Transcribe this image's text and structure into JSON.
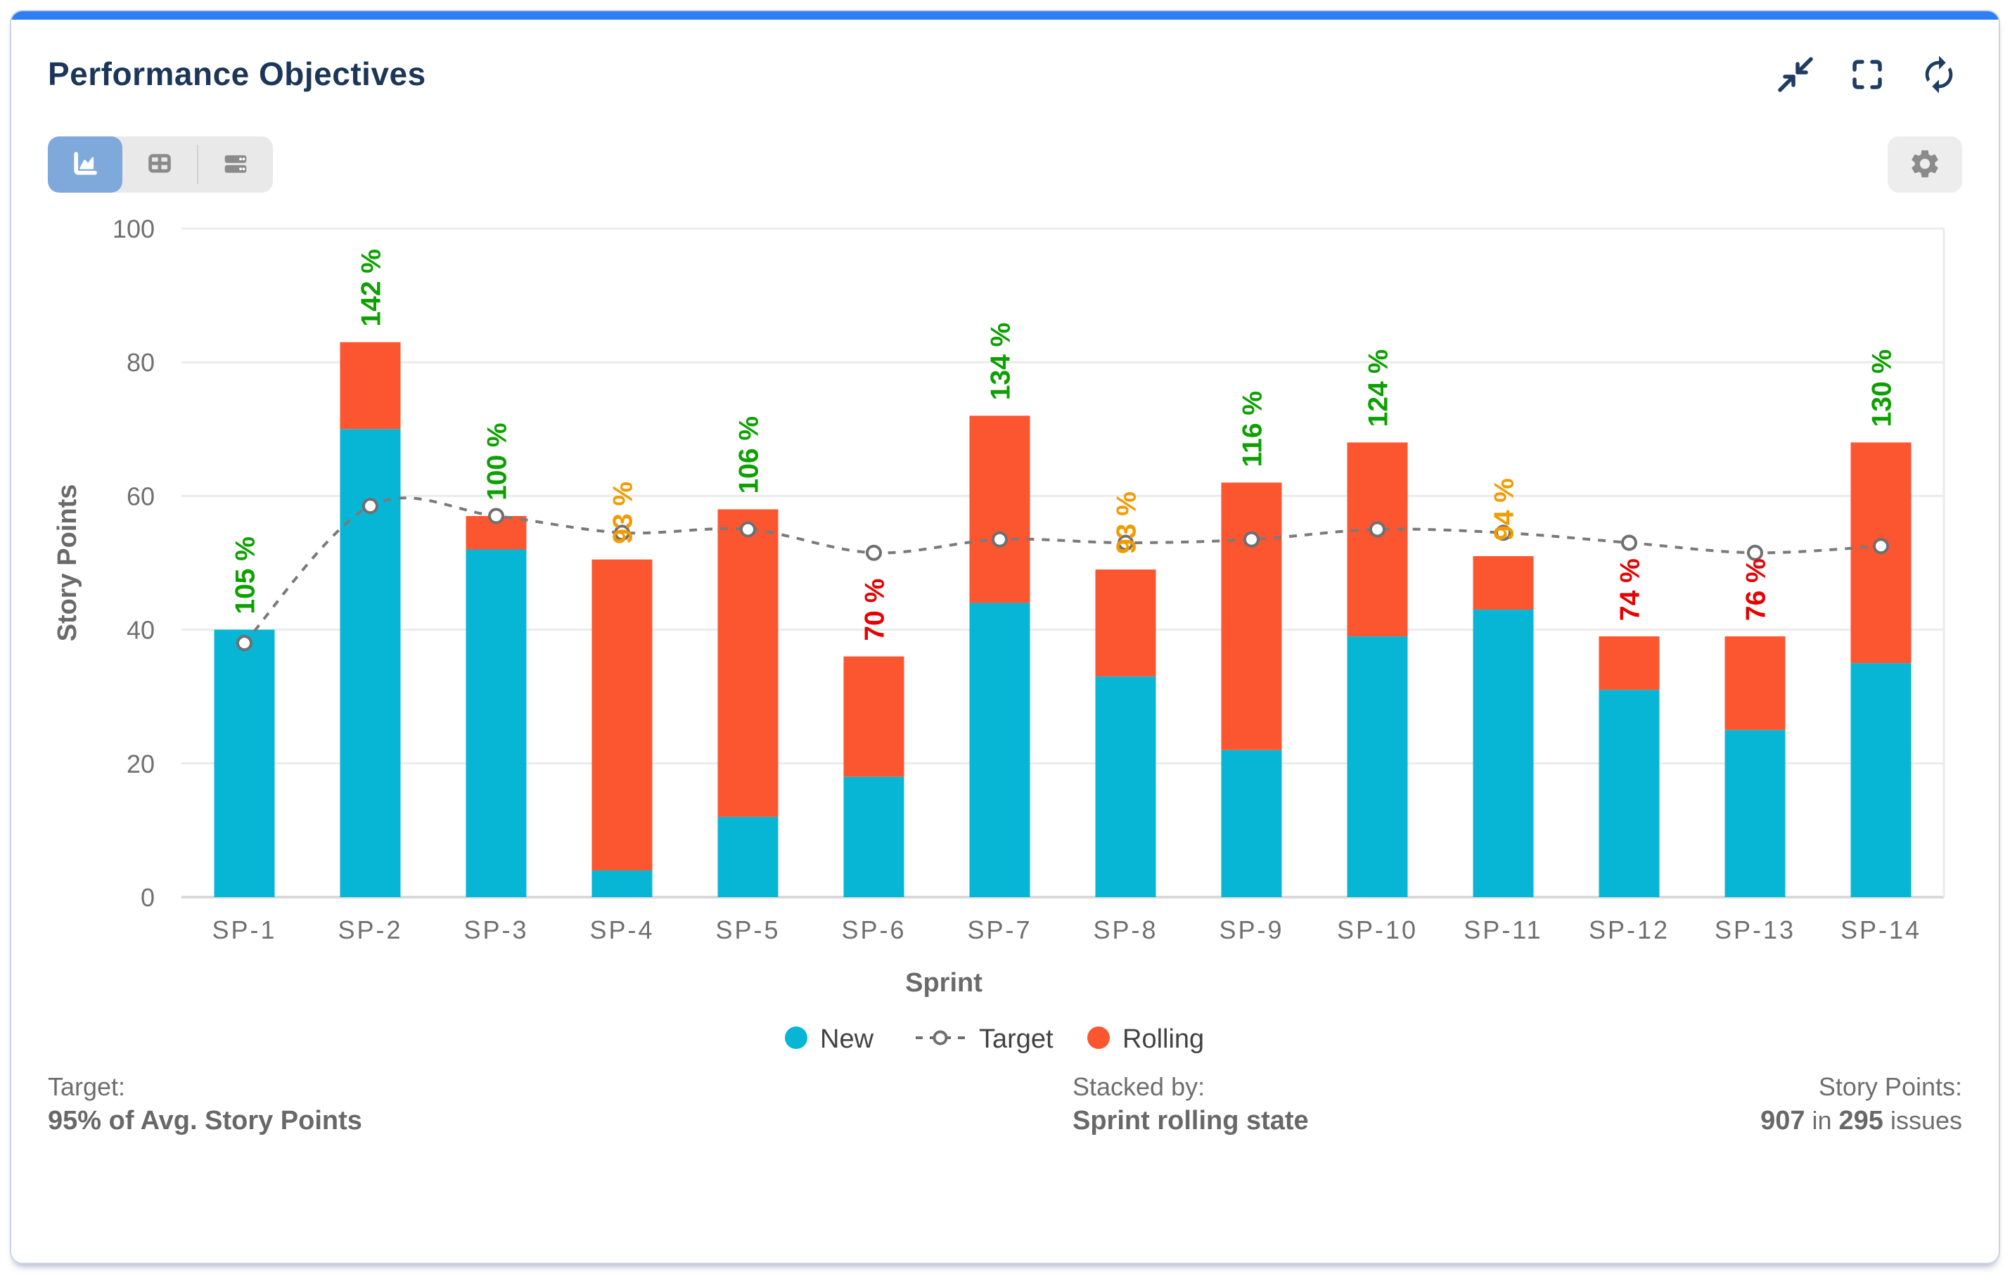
{
  "panel": {
    "title": "Performance Objectives"
  },
  "header": {
    "icons": [
      {
        "name": "collapse"
      },
      {
        "name": "fullscreen"
      },
      {
        "name": "refresh"
      }
    ]
  },
  "toolbar": {
    "views": [
      "chart",
      "table",
      "rows"
    ],
    "active_view": "chart"
  },
  "chart_data": {
    "type": "bar",
    "stacked": true,
    "title": "Performance Objectives",
    "categories": [
      "SP-1",
      "SP-2",
      "SP-3",
      "SP-4",
      "SP-5",
      "SP-6",
      "SP-7",
      "SP-8",
      "SP-9",
      "SP-10",
      "SP-11",
      "SP-12",
      "SP-13",
      "SP-14"
    ],
    "series": [
      {
        "name": "New",
        "color": "#07b6d5",
        "values": [
          40,
          70,
          52,
          4,
          12,
          18,
          44,
          33,
          22,
          39,
          43,
          31,
          25,
          35
        ]
      },
      {
        "name": "Rolling",
        "color": "#fb5630",
        "values": [
          0,
          13,
          5,
          46.5,
          46,
          18,
          28,
          16,
          40,
          29,
          8,
          8,
          14,
          33
        ]
      }
    ],
    "target": {
      "name": "Target",
      "color": "#7a7a7a",
      "values": [
        38,
        58.5,
        57,
        54.5,
        55,
        51.5,
        53.5,
        53,
        53.5,
        55,
        54.5,
        53,
        51.5,
        52.5
      ]
    },
    "percent_labels": [
      {
        "text": "105 %",
        "status": "good"
      },
      {
        "text": "142 %",
        "status": "good"
      },
      {
        "text": "100 %",
        "status": "good"
      },
      {
        "text": "93 %",
        "status": "warn"
      },
      {
        "text": "106 %",
        "status": "good"
      },
      {
        "text": "70 %",
        "status": "bad"
      },
      {
        "text": "134 %",
        "status": "good"
      },
      {
        "text": "93 %",
        "status": "warn"
      },
      {
        "text": "116 %",
        "status": "good"
      },
      {
        "text": "124 %",
        "status": "good"
      },
      {
        "text": "94 %",
        "status": "warn"
      },
      {
        "text": "74 %",
        "status": "bad"
      },
      {
        "text": "76 %",
        "status": "bad"
      },
      {
        "text": "130 %",
        "status": "good"
      }
    ],
    "status_colors": {
      "good": "#0ca000",
      "warn": "#f29b00",
      "bad": "#e60000"
    },
    "xlabel": "Sprint",
    "ylabel": "Story Points",
    "ylim": [
      0,
      100
    ],
    "yticks": [
      0,
      20,
      40,
      60,
      80,
      100
    ],
    "grid": true,
    "legend_position": "bottom"
  },
  "footer": {
    "target_label": "Target:",
    "target_value": "95% of Avg. Story Points",
    "stacked_label": "Stacked by:",
    "stacked_value": "Sprint rolling state",
    "points_label": "Story Points:",
    "points_total": "907",
    "points_connector": "in",
    "points_issues": "295",
    "points_suffix": "issues"
  }
}
